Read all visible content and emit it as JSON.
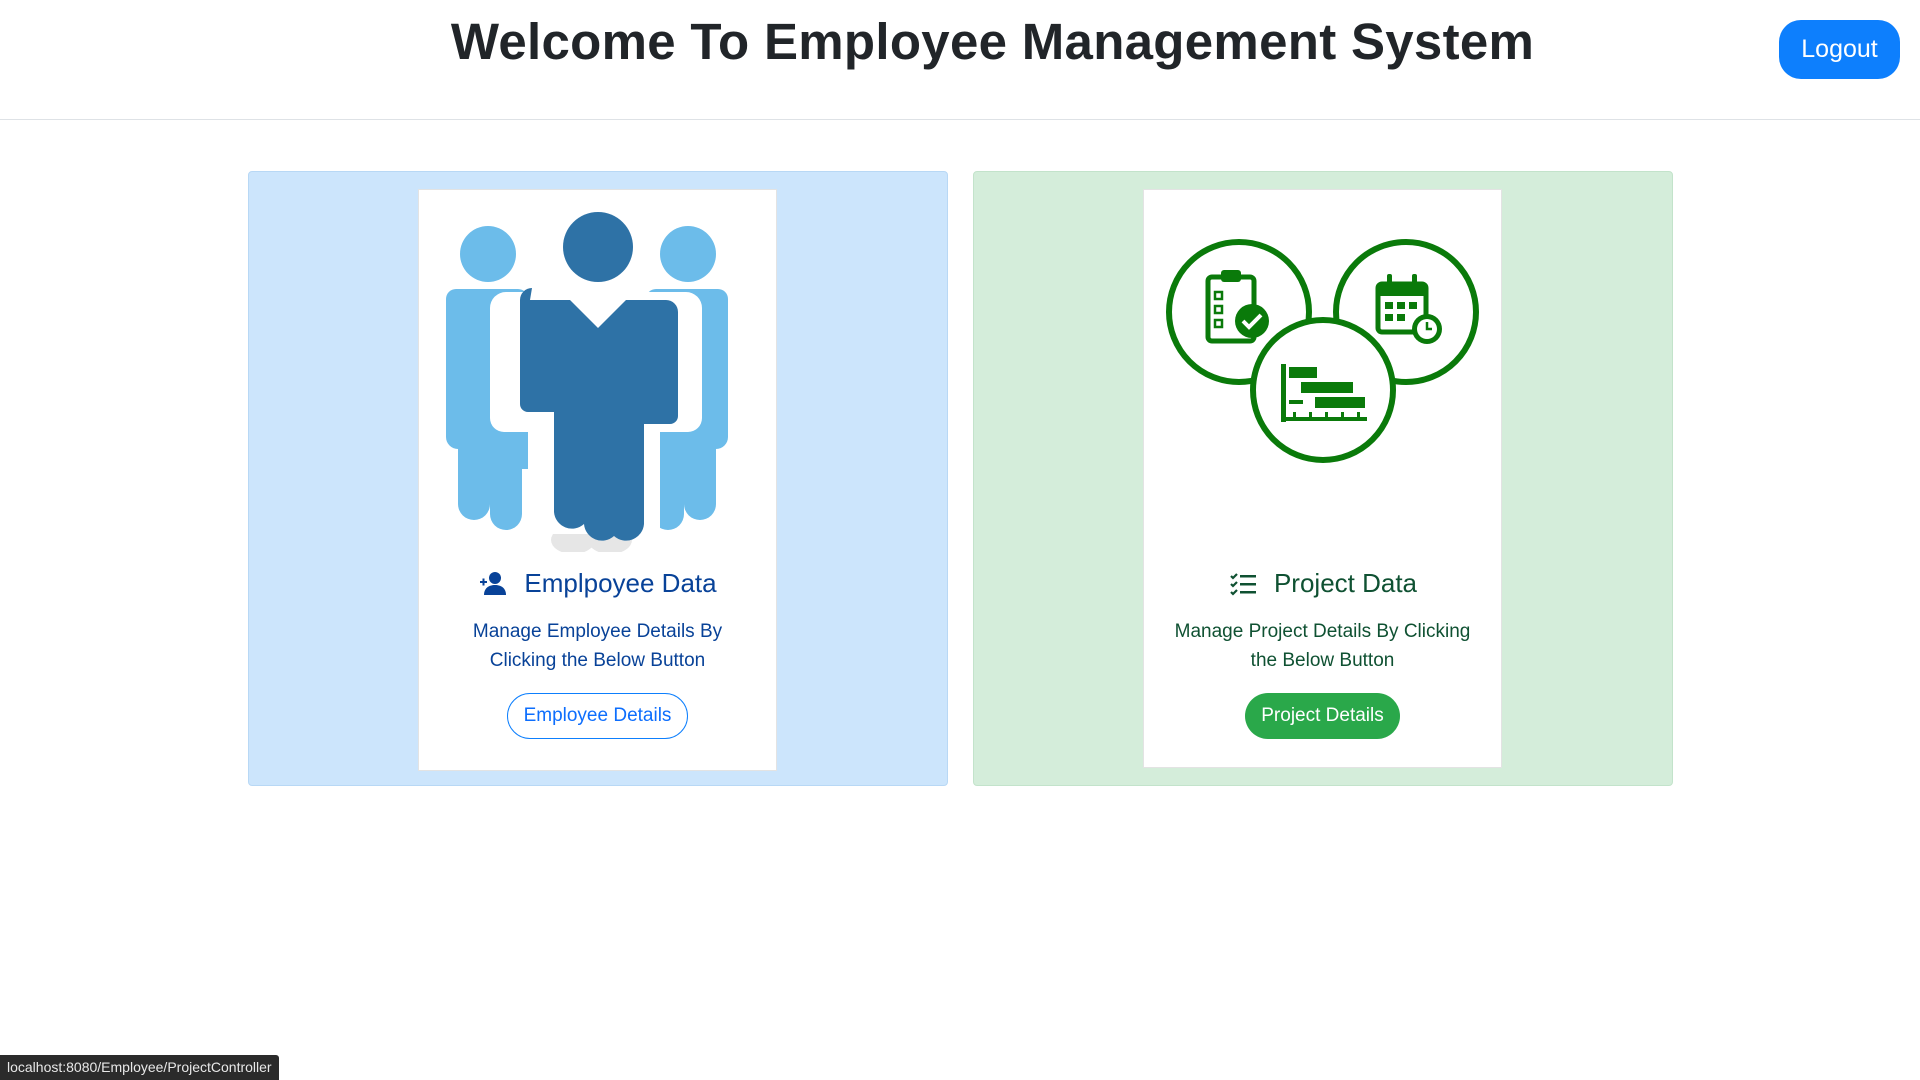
{
  "header": {
    "title": "Welcome To Employee Management System",
    "logout_label": "Logout"
  },
  "employee_card": {
    "title": "Emplpoyee Data",
    "text": "Manage Employee Details By Clicking the Below Button",
    "button_label": "Employee Details",
    "icon": "person-add-icon",
    "image": "employees-group-icon"
  },
  "project_card": {
    "title": "Project Data",
    "text": "Manage Project Details By Clicking the Below Button",
    "button_label": "Project Details",
    "icon": "checklist-icon",
    "image": "project-management-icon"
  },
  "status_bar": {
    "url": "localhost:8080/Employee/ProjectController"
  },
  "colors": {
    "primary": "#0d7ffd",
    "success": "#2aa84a",
    "employee_panel": "#cce5fc",
    "project_panel": "#d4edda",
    "employee_figure_dark": "#2e72a6",
    "employee_figure_light": "#6cbcea",
    "project_icon": "#0a7a0a"
  }
}
